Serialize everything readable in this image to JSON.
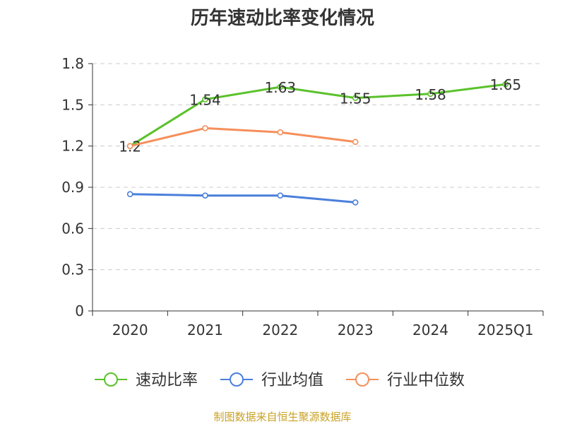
{
  "chart_data": {
    "type": "line",
    "title": "历年速动比率变化情况",
    "categories": [
      "2020",
      "2021",
      "2022",
      "2023",
      "2024",
      "2025Q1"
    ],
    "y_ticks": [
      "0",
      "0.3",
      "0.6",
      "0.9",
      "1.2",
      "1.5",
      "1.8"
    ],
    "ylim": [
      0,
      1.8
    ],
    "grid": true,
    "legend_position": "bottom",
    "series": [
      {
        "name": "速动比率",
        "color": "#5ac22b",
        "values": [
          1.2,
          1.54,
          1.63,
          1.55,
          1.58,
          1.65
        ],
        "labels": [
          "1.2",
          "1.54",
          "1.63",
          "1.55",
          "1.58",
          "1.65"
        ],
        "show_labels": true
      },
      {
        "name": "行业均值",
        "color": "#4a7fdc",
        "values": [
          0.85,
          0.84,
          0.84,
          0.79,
          null,
          null
        ],
        "show_labels": false
      },
      {
        "name": "行业中位数",
        "color": "#f58f5b",
        "values": [
          1.2,
          1.33,
          1.3,
          1.23,
          null,
          null
        ],
        "show_labels": false
      }
    ],
    "source": "制图数据来自恒生聚源数据库"
  }
}
